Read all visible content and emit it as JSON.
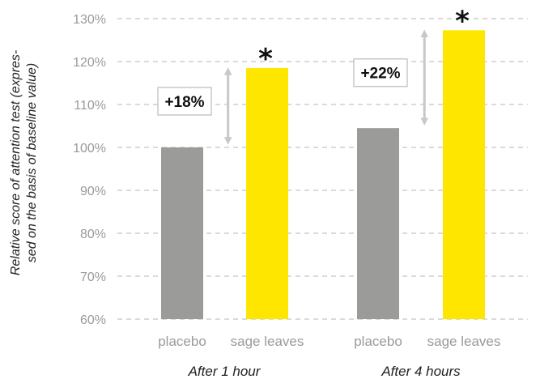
{
  "chart_data": {
    "type": "bar",
    "ylabel": [
      "Relative score of attention test (expres-",
      "sed on the basis of baseline value)"
    ],
    "yunit": "%",
    "ylim": [
      60,
      130
    ],
    "yticks": [
      60,
      70,
      80,
      90,
      100,
      110,
      120,
      130
    ],
    "grid": true,
    "groups": [
      {
        "label": "After 1 hour",
        "bars": [
          {
            "category": "placebo",
            "value": 100,
            "color": "#9b9b99"
          },
          {
            "category": "sage leaves",
            "value": 118.5,
            "color": "#ffe600",
            "marker": "*"
          }
        ],
        "difference_label": "+18%"
      },
      {
        "label": "After 4 hours",
        "bars": [
          {
            "category": "placebo",
            "value": 104.5,
            "color": "#9b9b99"
          },
          {
            "category": "sage leaves",
            "value": 127.3,
            "color": "#ffe600",
            "marker": "*"
          }
        ],
        "difference_label": "+22%"
      }
    ]
  }
}
